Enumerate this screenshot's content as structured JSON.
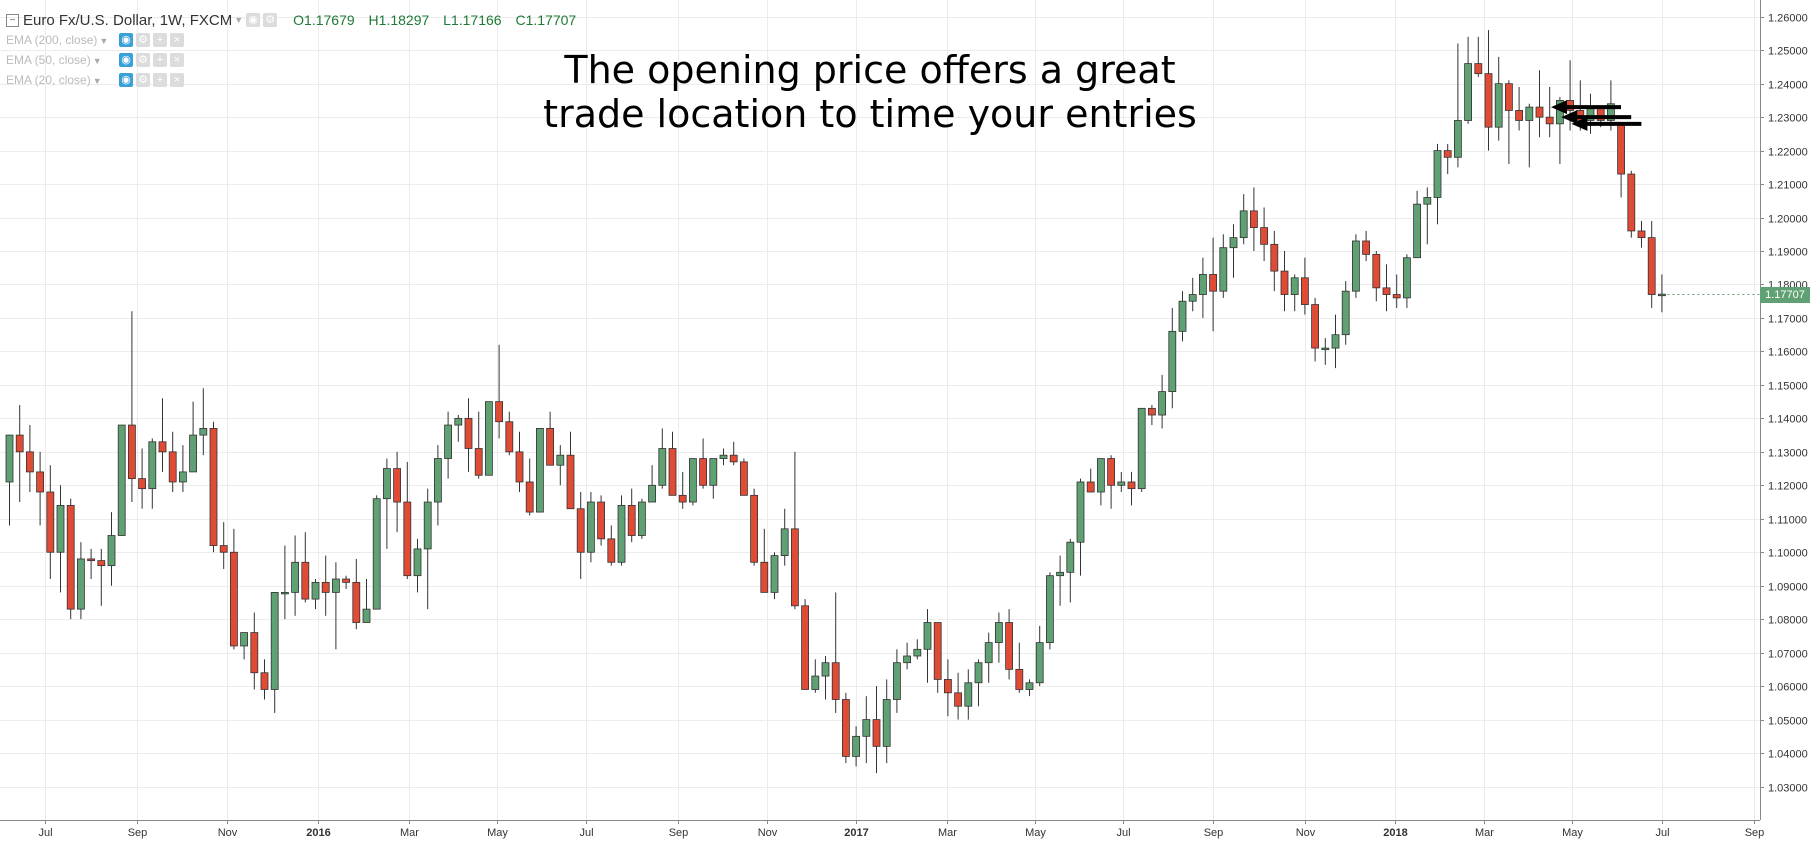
{
  "legend": {
    "symbol": "Euro Fx/U.S. Dollar, 1W, FXCM",
    "open_label": "O",
    "open": "1.17679",
    "high_label": "H",
    "high": "1.18297",
    "low_label": "L",
    "low": "1.17166",
    "close_label": "C",
    "close": "1.17707",
    "studies": [
      "EMA (200, close)",
      "EMA (50, close)",
      "EMA (20, close)"
    ]
  },
  "annotation": {
    "line1": "The opening price offers a great",
    "line2": "trade location to time your entries"
  },
  "last_price": "1.17707",
  "colors": {
    "up": "#5fa173",
    "down": "#e04b36",
    "grid": "#ececec",
    "arrow": "#000000"
  },
  "chart_data": {
    "type": "candlestick",
    "timeframe": "1W",
    "ylim": [
      1.02,
      1.265
    ],
    "y_ticks": [
      "1.03000",
      "1.04000",
      "1.05000",
      "1.06000",
      "1.07000",
      "1.08000",
      "1.09000",
      "1.10000",
      "1.11000",
      "1.12000",
      "1.13000",
      "1.14000",
      "1.15000",
      "1.16000",
      "1.17000",
      "1.18000",
      "1.19000",
      "1.20000",
      "1.21000",
      "1.22000",
      "1.23000",
      "1.24000",
      "1.25000",
      "1.26000"
    ],
    "x_ticks": [
      {
        "label": "Jul",
        "bar": 3.5,
        "bold": false
      },
      {
        "label": "Sep",
        "bar": 12.5,
        "bold": false
      },
      {
        "label": "Nov",
        "bar": 21.3,
        "bold": false
      },
      {
        "label": "2016",
        "bar": 30.2,
        "bold": true
      },
      {
        "label": "Mar",
        "bar": 39.2,
        "bold": false
      },
      {
        "label": "May",
        "bar": 47.8,
        "bold": false
      },
      {
        "label": "Jul",
        "bar": 56.5,
        "bold": false
      },
      {
        "label": "Sep",
        "bar": 65.5,
        "bold": false
      },
      {
        "label": "Nov",
        "bar": 74.3,
        "bold": false
      },
      {
        "label": "2017",
        "bar": 83.0,
        "bold": true
      },
      {
        "label": "Mar",
        "bar": 91.9,
        "bold": false
      },
      {
        "label": "May",
        "bar": 100.5,
        "bold": false
      },
      {
        "label": "Jul",
        "bar": 109.2,
        "bold": false
      },
      {
        "label": "Sep",
        "bar": 118.0,
        "bold": false
      },
      {
        "label": "Nov",
        "bar": 127.0,
        "bold": false
      },
      {
        "label": "2018",
        "bar": 135.8,
        "bold": true
      },
      {
        "label": "Mar",
        "bar": 144.6,
        "bold": false
      },
      {
        "label": "May",
        "bar": 153.2,
        "bold": false
      },
      {
        "label": "Jul",
        "bar": 162.0,
        "bold": false
      },
      {
        "label": "Sep",
        "bar": 171.0,
        "bold": false
      }
    ],
    "arrows_at_bars": [
      150,
      151,
      152
    ],
    "candles": [
      [
        1.121,
        1.135,
        1.108,
        1.135
      ],
      [
        1.135,
        1.144,
        1.115,
        1.13
      ],
      [
        1.13,
        1.138,
        1.118,
        1.124
      ],
      [
        1.124,
        1.13,
        1.108,
        1.118
      ],
      [
        1.118,
        1.126,
        1.092,
        1.1
      ],
      [
        1.1,
        1.12,
        1.088,
        1.114
      ],
      [
        1.114,
        1.116,
        1.08,
        1.083
      ],
      [
        1.083,
        1.103,
        1.08,
        1.098
      ],
      [
        1.098,
        1.101,
        1.092,
        1.0975
      ],
      [
        1.0975,
        1.101,
        1.084,
        1.096
      ],
      [
        1.096,
        1.112,
        1.09,
        1.105
      ],
      [
        1.105,
        1.138,
        1.105,
        1.138
      ],
      [
        1.138,
        1.172,
        1.115,
        1.122
      ],
      [
        1.122,
        1.131,
        1.113,
        1.119
      ],
      [
        1.119,
        1.134,
        1.113,
        1.133
      ],
      [
        1.133,
        1.146,
        1.124,
        1.13
      ],
      [
        1.13,
        1.136,
        1.118,
        1.121
      ],
      [
        1.121,
        1.132,
        1.118,
        1.124
      ],
      [
        1.124,
        1.145,
        1.124,
        1.135
      ],
      [
        1.135,
        1.149,
        1.129,
        1.137
      ],
      [
        1.137,
        1.139,
        1.1,
        1.102
      ],
      [
        1.102,
        1.109,
        1.095,
        1.1
      ],
      [
        1.1,
        1.107,
        1.071,
        1.072
      ],
      [
        1.072,
        1.076,
        1.068,
        1.076
      ],
      [
        1.076,
        1.082,
        1.059,
        1.064
      ],
      [
        1.064,
        1.068,
        1.056,
        1.059
      ],
      [
        1.059,
        1.088,
        1.052,
        1.088
      ],
      [
        1.088,
        1.102,
        1.08,
        1.088
      ],
      [
        1.088,
        1.105,
        1.081,
        1.097
      ],
      [
        1.097,
        1.106,
        1.085,
        1.086
      ],
      [
        1.086,
        1.092,
        1.083,
        1.091
      ],
      [
        1.091,
        1.099,
        1.081,
        1.088
      ],
      [
        1.088,
        1.097,
        1.071,
        1.092
      ],
      [
        1.092,
        1.093,
        1.089,
        1.091
      ],
      [
        1.091,
        1.098,
        1.077,
        1.079
      ],
      [
        1.079,
        1.092,
        1.079,
        1.083
      ],
      [
        1.083,
        1.117,
        1.083,
        1.116
      ],
      [
        1.116,
        1.128,
        1.101,
        1.125
      ],
      [
        1.125,
        1.13,
        1.106,
        1.115
      ],
      [
        1.115,
        1.127,
        1.092,
        1.093
      ],
      [
        1.093,
        1.104,
        1.088,
        1.101
      ],
      [
        1.101,
        1.119,
        1.083,
        1.115
      ],
      [
        1.115,
        1.132,
        1.108,
        1.128
      ],
      [
        1.128,
        1.142,
        1.122,
        1.138
      ],
      [
        1.138,
        1.141,
        1.133,
        1.14
      ],
      [
        1.14,
        1.146,
        1.124,
        1.131
      ],
      [
        1.131,
        1.142,
        1.122,
        1.123
      ],
      [
        1.123,
        1.145,
        1.123,
        1.145
      ],
      [
        1.145,
        1.162,
        1.134,
        1.139
      ],
      [
        1.139,
        1.142,
        1.129,
        1.13
      ],
      [
        1.13,
        1.136,
        1.118,
        1.121
      ],
      [
        1.121,
        1.128,
        1.111,
        1.112
      ],
      [
        1.112,
        1.137,
        1.112,
        1.137
      ],
      [
        1.137,
        1.142,
        1.126,
        1.126
      ],
      [
        1.126,
        1.132,
        1.12,
        1.129
      ],
      [
        1.129,
        1.136,
        1.113,
        1.113
      ],
      [
        1.113,
        1.118,
        1.092,
        1.1
      ],
      [
        1.1,
        1.118,
        1.097,
        1.115
      ],
      [
        1.115,
        1.117,
        1.102,
        1.104
      ],
      [
        1.104,
        1.108,
        1.096,
        1.097
      ],
      [
        1.097,
        1.117,
        1.096,
        1.114
      ],
      [
        1.114,
        1.119,
        1.103,
        1.105
      ],
      [
        1.105,
        1.116,
        1.104,
        1.115
      ],
      [
        1.115,
        1.126,
        1.115,
        1.12
      ],
      [
        1.12,
        1.137,
        1.119,
        1.131
      ],
      [
        1.131,
        1.136,
        1.117,
        1.117
      ],
      [
        1.117,
        1.124,
        1.113,
        1.115
      ],
      [
        1.115,
        1.128,
        1.114,
        1.128
      ],
      [
        1.128,
        1.134,
        1.119,
        1.12
      ],
      [
        1.12,
        1.128,
        1.116,
        1.128
      ],
      [
        1.128,
        1.131,
        1.126,
        1.129
      ],
      [
        1.129,
        1.133,
        1.126,
        1.127
      ],
      [
        1.127,
        1.128,
        1.117,
        1.117
      ],
      [
        1.117,
        1.119,
        1.096,
        1.097
      ],
      [
        1.097,
        1.107,
        1.09,
        1.088
      ],
      [
        1.088,
        1.1,
        1.086,
        1.099
      ],
      [
        1.099,
        1.113,
        1.096,
        1.107
      ],
      [
        1.107,
        1.13,
        1.083,
        1.084
      ],
      [
        1.084,
        1.086,
        1.059,
        1.059
      ],
      [
        1.059,
        1.068,
        1.058,
        1.063
      ],
      [
        1.063,
        1.069,
        1.056,
        1.067
      ],
      [
        1.067,
        1.088,
        1.052,
        1.056
      ],
      [
        1.056,
        1.058,
        1.037,
        1.039
      ],
      [
        1.039,
        1.048,
        1.036,
        1.045
      ],
      [
        1.045,
        1.057,
        1.037,
        1.05
      ],
      [
        1.05,
        1.06,
        1.034,
        1.042
      ],
      [
        1.042,
        1.062,
        1.037,
        1.056
      ],
      [
        1.056,
        1.071,
        1.052,
        1.067
      ],
      [
        1.067,
        1.073,
        1.065,
        1.069
      ],
      [
        1.069,
        1.074,
        1.068,
        1.071
      ],
      [
        1.071,
        1.083,
        1.061,
        1.079
      ],
      [
        1.079,
        1.079,
        1.058,
        1.062
      ],
      [
        1.062,
        1.068,
        1.051,
        1.058
      ],
      [
        1.058,
        1.064,
        1.05,
        1.054
      ],
      [
        1.054,
        1.065,
        1.05,
        1.061
      ],
      [
        1.061,
        1.068,
        1.054,
        1.067
      ],
      [
        1.067,
        1.076,
        1.061,
        1.073
      ],
      [
        1.073,
        1.082,
        1.067,
        1.079
      ],
      [
        1.079,
        1.083,
        1.062,
        1.065
      ],
      [
        1.065,
        1.073,
        1.058,
        1.059
      ],
      [
        1.059,
        1.062,
        1.057,
        1.061
      ],
      [
        1.061,
        1.078,
        1.06,
        1.073
      ],
      [
        1.073,
        1.094,
        1.071,
        1.093
      ],
      [
        1.093,
        1.099,
        1.084,
        1.094
      ],
      [
        1.094,
        1.104,
        1.085,
        1.103
      ],
      [
        1.103,
        1.122,
        1.093,
        1.121
      ],
      [
        1.121,
        1.125,
        1.118,
        1.118
      ],
      [
        1.118,
        1.128,
        1.114,
        1.128
      ],
      [
        1.128,
        1.129,
        1.113,
        1.12
      ],
      [
        1.12,
        1.124,
        1.118,
        1.121
      ],
      [
        1.121,
        1.124,
        1.114,
        1.119
      ],
      [
        1.119,
        1.143,
        1.118,
        1.143
      ],
      [
        1.143,
        1.144,
        1.138,
        1.141
      ],
      [
        1.141,
        1.153,
        1.137,
        1.148
      ],
      [
        1.148,
        1.173,
        1.143,
        1.166
      ],
      [
        1.166,
        1.178,
        1.163,
        1.175
      ],
      [
        1.175,
        1.182,
        1.172,
        1.177
      ],
      [
        1.177,
        1.188,
        1.17,
        1.183
      ],
      [
        1.183,
        1.194,
        1.166,
        1.178
      ],
      [
        1.178,
        1.195,
        1.176,
        1.191
      ],
      [
        1.191,
        1.198,
        1.182,
        1.194
      ],
      [
        1.194,
        1.207,
        1.192,
        1.202
      ],
      [
        1.202,
        1.209,
        1.19,
        1.197
      ],
      [
        1.197,
        1.203,
        1.187,
        1.192
      ],
      [
        1.192,
        1.196,
        1.178,
        1.184
      ],
      [
        1.184,
        1.19,
        1.172,
        1.177
      ],
      [
        1.177,
        1.183,
        1.172,
        1.182
      ],
      [
        1.182,
        1.188,
        1.171,
        1.174
      ],
      [
        1.174,
        1.176,
        1.157,
        1.161
      ],
      [
        1.161,
        1.164,
        1.156,
        1.161
      ],
      [
        1.161,
        1.171,
        1.155,
        1.165
      ],
      [
        1.165,
        1.181,
        1.162,
        1.178
      ],
      [
        1.178,
        1.195,
        1.176,
        1.193
      ],
      [
        1.193,
        1.196,
        1.187,
        1.189
      ],
      [
        1.189,
        1.19,
        1.175,
        1.179
      ],
      [
        1.179,
        1.186,
        1.172,
        1.177
      ],
      [
        1.177,
        1.183,
        1.173,
        1.176
      ],
      [
        1.176,
        1.189,
        1.173,
        1.188
      ],
      [
        1.188,
        1.208,
        1.188,
        1.204
      ],
      [
        1.204,
        1.209,
        1.192,
        1.206
      ],
      [
        1.206,
        1.222,
        1.198,
        1.22
      ],
      [
        1.22,
        1.222,
        1.213,
        1.218
      ],
      [
        1.218,
        1.252,
        1.215,
        1.229
      ],
      [
        1.229,
        1.254,
        1.228,
        1.246
      ],
      [
        1.246,
        1.254,
        1.242,
        1.243
      ],
      [
        1.243,
        1.256,
        1.22,
        1.227
      ],
      [
        1.227,
        1.248,
        1.223,
        1.24
      ],
      [
        1.24,
        1.241,
        1.216,
        1.232
      ],
      [
        1.232,
        1.239,
        1.226,
        1.229
      ],
      [
        1.229,
        1.234,
        1.215,
        1.233
      ],
      [
        1.233,
        1.244,
        1.224,
        1.23
      ],
      [
        1.23,
        1.239,
        1.224,
        1.228
      ],
      [
        1.228,
        1.236,
        1.216,
        1.235
      ],
      [
        1.235,
        1.247,
        1.226,
        1.232
      ],
      [
        1.232,
        1.241,
        1.226,
        1.229
      ],
      [
        1.229,
        1.237,
        1.225,
        1.233
      ],
      [
        1.233,
        1.233,
        1.227,
        1.229
      ],
      [
        1.229,
        1.241,
        1.226,
        1.234
      ],
      [
        1.228,
        1.228,
        1.206,
        1.213
      ],
      [
        1.213,
        1.214,
        1.194,
        1.196
      ],
      [
        1.196,
        1.199,
        1.191,
        1.194
      ],
      [
        1.194,
        1.199,
        1.173,
        1.177
      ],
      [
        1.1768,
        1.183,
        1.1717,
        1.1771
      ]
    ]
  }
}
